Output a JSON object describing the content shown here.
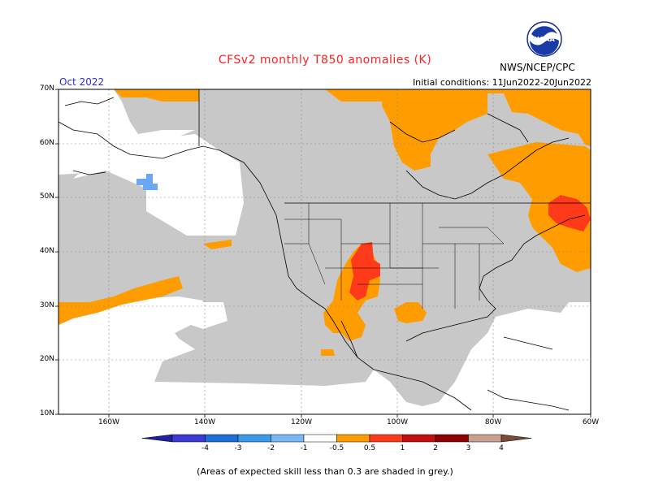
{
  "header": {
    "title": "CFSv2 monthly T850 anomalies (K)",
    "month": "Oct 2022",
    "initial_conditions": "Initial conditions: 11Jun2022-20Jun2022",
    "agency": "NWS/NCEP/CPC",
    "logo_text": "NOAA"
  },
  "axes": {
    "lat_labels": [
      "70N",
      "60N",
      "50N",
      "40N",
      "30N",
      "20N",
      "10N"
    ],
    "lon_labels": [
      "160W",
      "140W",
      "120W",
      "100W",
      "80W",
      "60W"
    ]
  },
  "colorbar": {
    "tick_labels": [
      "-4",
      "-3",
      "-2",
      "-1",
      "-0.5",
      "0.5",
      "1",
      "2",
      "3",
      "4"
    ],
    "colors": [
      "#2020a0",
      "#3a3ad0",
      "#1e6ed8",
      "#3a9aea",
      "#7ab8f5",
      "#ffffff",
      "#ff9d00",
      "#ff3a1a",
      "#c01010",
      "#8b0000",
      "#c8a090",
      "#7a4a3a"
    ]
  },
  "legend_colors": {
    "orange": "#ff9d00",
    "red": "#ff3a1a",
    "grey": "#c8c8c8",
    "light_blue": "#6aa8f5"
  },
  "footnote": "(Areas of expected skill less than 0.3 are shaded in grey.)"
}
